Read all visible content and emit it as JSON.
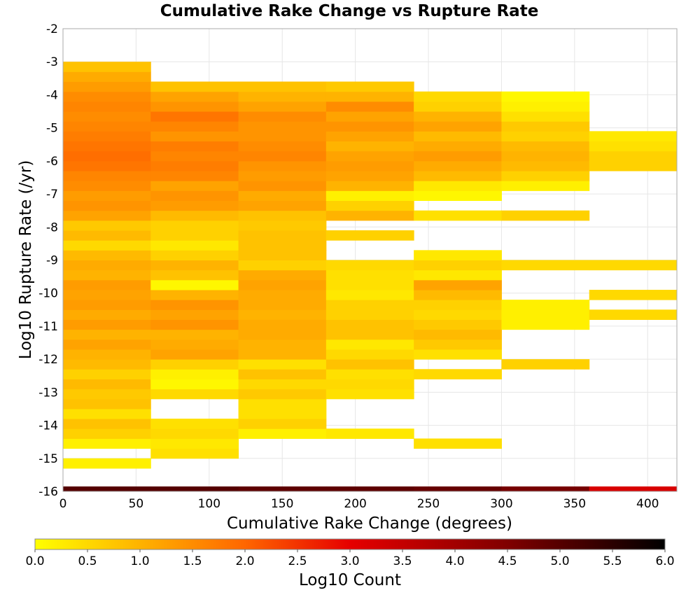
{
  "chart_data": {
    "type": "heatmap",
    "title": "Cumulative Rake Change vs Rupture Rate",
    "xlabel": "Cumulative Rake Change (degrees)",
    "ylabel": "Log10 Rupture Rate (/yr)",
    "xlim": [
      0,
      420
    ],
    "ylim": [
      -16,
      -2
    ],
    "x_ticks": [
      0,
      50,
      100,
      150,
      200,
      250,
      300,
      350,
      400
    ],
    "y_ticks": [
      -2,
      -3,
      -4,
      -5,
      -6,
      -7,
      -8,
      -9,
      -10,
      -11,
      -12,
      -13,
      -14,
      -15,
      -16
    ],
    "grid": true,
    "x_bin_width": 60,
    "y_bin_height": 0.3,
    "colorbar": {
      "label": "Log10 Count",
      "range": [
        0.0,
        6.0
      ],
      "ticks": [
        "0.0",
        "0.5",
        "1.0",
        "1.5",
        "2.0",
        "2.5",
        "3.0",
        "3.5",
        "4.0",
        "4.5",
        "5.0",
        "5.5",
        "6.0"
      ],
      "placement": "bottom",
      "stops": [
        {
          "value": 0.0,
          "color": "#ffff00"
        },
        {
          "value": 2.0,
          "color": "#ff6600"
        },
        {
          "value": 3.0,
          "color": "#e60000"
        },
        {
          "value": 4.5,
          "color": "#800000"
        },
        {
          "value": 6.0,
          "color": "#000000"
        }
      ]
    },
    "columns": [
      {
        "x0": 0,
        "x1": 60,
        "bins": [
          [
            -15.3,
            -15.0,
            0.2
          ],
          [
            -14.7,
            -14.4,
            0.2
          ],
          [
            -14.4,
            -14.1,
            0.6
          ],
          [
            -14.1,
            -13.8,
            0.8
          ],
          [
            -13.8,
            -13.5,
            0.4
          ],
          [
            -13.5,
            -13.2,
            0.8
          ],
          [
            -13.2,
            -12.9,
            0.7
          ],
          [
            -12.9,
            -12.6,
            0.9
          ],
          [
            -12.6,
            -12.3,
            0.6
          ],
          [
            -12.3,
            -12.0,
            0.9
          ],
          [
            -12.0,
            -11.7,
            1.0
          ],
          [
            -11.7,
            -11.4,
            1.2
          ],
          [
            -11.4,
            -11.1,
            1.0
          ],
          [
            -11.1,
            -10.8,
            1.3
          ],
          [
            -10.8,
            -10.5,
            1.1
          ],
          [
            -10.5,
            -10.2,
            1.3
          ],
          [
            -10.2,
            -9.9,
            1.2
          ],
          [
            -9.9,
            -9.6,
            1.3
          ],
          [
            -9.6,
            -9.3,
            1.0
          ],
          [
            -9.3,
            -9.0,
            1.1
          ],
          [
            -9.0,
            -8.7,
            0.9
          ],
          [
            -8.7,
            -8.4,
            0.5
          ],
          [
            -8.4,
            -8.1,
            0.9
          ],
          [
            -8.1,
            -7.8,
            0.7
          ],
          [
            -7.8,
            -7.5,
            1.2
          ],
          [
            -7.5,
            -7.2,
            1.4
          ],
          [
            -7.2,
            -6.9,
            1.3
          ],
          [
            -6.9,
            -6.6,
            1.5
          ],
          [
            -6.6,
            -6.3,
            1.6
          ],
          [
            -6.3,
            -6.0,
            1.8
          ],
          [
            -6.0,
            -5.7,
            1.9
          ],
          [
            -5.7,
            -5.4,
            1.8
          ],
          [
            -5.4,
            -5.1,
            1.7
          ],
          [
            -5.1,
            -4.8,
            1.6
          ],
          [
            -4.8,
            -4.5,
            1.5
          ],
          [
            -4.5,
            -4.2,
            1.6
          ],
          [
            -4.2,
            -3.9,
            1.5
          ],
          [
            -3.9,
            -3.6,
            1.3
          ],
          [
            -3.6,
            -3.3,
            1.1
          ],
          [
            -3.3,
            -3.0,
            0.8
          ]
        ]
      },
      {
        "x0": 60,
        "x1": 120,
        "bins": [
          [
            -15.0,
            -14.7,
            0.4
          ],
          [
            -14.7,
            -14.4,
            0.3
          ],
          [
            -14.4,
            -14.1,
            0.5
          ],
          [
            -14.1,
            -13.8,
            0.4
          ],
          [
            -13.2,
            -12.9,
            0.5
          ],
          [
            -12.9,
            -12.6,
            0.1
          ],
          [
            -12.6,
            -12.3,
            0.2
          ],
          [
            -12.3,
            -12.0,
            0.6
          ],
          [
            -12.0,
            -11.7,
            1.2
          ],
          [
            -11.7,
            -11.4,
            1.1
          ],
          [
            -11.4,
            -11.1,
            1.0
          ],
          [
            -11.1,
            -10.8,
            1.4
          ],
          [
            -10.8,
            -10.5,
            1.2
          ],
          [
            -10.5,
            -10.2,
            1.4
          ],
          [
            -10.2,
            -9.9,
            1.0
          ],
          [
            -9.9,
            -9.6,
            0.1
          ],
          [
            -9.6,
            -9.3,
            0.8
          ],
          [
            -9.3,
            -9.0,
            1.0
          ],
          [
            -9.0,
            -8.7,
            0.6
          ],
          [
            -8.7,
            -8.4,
            0.3
          ],
          [
            -8.4,
            -8.1,
            0.6
          ],
          [
            -8.1,
            -7.8,
            0.6
          ],
          [
            -7.8,
            -7.5,
            0.9
          ],
          [
            -7.5,
            -7.2,
            1.3
          ],
          [
            -7.2,
            -6.9,
            1.4
          ],
          [
            -6.9,
            -6.6,
            1.2
          ],
          [
            -6.6,
            -6.3,
            1.6
          ],
          [
            -6.3,
            -6.0,
            1.7
          ],
          [
            -6.0,
            -5.7,
            1.6
          ],
          [
            -5.7,
            -5.4,
            1.7
          ],
          [
            -5.4,
            -5.1,
            1.4
          ],
          [
            -5.1,
            -4.8,
            1.6
          ],
          [
            -4.8,
            -4.5,
            1.8
          ],
          [
            -4.5,
            -4.2,
            1.4
          ],
          [
            -4.2,
            -3.9,
            1.2
          ],
          [
            -3.9,
            -3.6,
            0.8
          ]
        ]
      },
      {
        "x0": 120,
        "x1": 180,
        "bins": [
          [
            -14.4,
            -14.1,
            0.2
          ],
          [
            -14.1,
            -13.8,
            0.6
          ],
          [
            -13.8,
            -13.5,
            0.4
          ],
          [
            -13.5,
            -13.2,
            0.4
          ],
          [
            -13.2,
            -12.9,
            0.7
          ],
          [
            -12.9,
            -12.6,
            0.5
          ],
          [
            -12.6,
            -12.3,
            0.8
          ],
          [
            -12.3,
            -12.0,
            0.4
          ],
          [
            -12.0,
            -11.7,
            1.0
          ],
          [
            -11.7,
            -11.4,
            1.0
          ],
          [
            -11.4,
            -11.1,
            1.1
          ],
          [
            -11.1,
            -10.8,
            1.1
          ],
          [
            -10.8,
            -10.5,
            1.0
          ],
          [
            -10.5,
            -10.2,
            1.1
          ],
          [
            -10.2,
            -9.9,
            1.1
          ],
          [
            -9.9,
            -9.6,
            1.2
          ],
          [
            -9.6,
            -9.3,
            1.1
          ],
          [
            -9.3,
            -9.0,
            0.6
          ],
          [
            -9.0,
            -8.7,
            0.8
          ],
          [
            -8.7,
            -8.4,
            0.8
          ],
          [
            -8.4,
            -8.1,
            0.8
          ],
          [
            -8.1,
            -7.8,
            0.7
          ],
          [
            -7.8,
            -7.5,
            0.8
          ],
          [
            -7.5,
            -7.2,
            1.2
          ],
          [
            -7.2,
            -6.9,
            1.1
          ],
          [
            -6.9,
            -6.6,
            1.4
          ],
          [
            -6.6,
            -6.3,
            1.3
          ],
          [
            -6.3,
            -6.0,
            1.4
          ],
          [
            -6.0,
            -5.7,
            1.6
          ],
          [
            -5.7,
            -5.4,
            1.5
          ],
          [
            -5.4,
            -5.1,
            1.4
          ],
          [
            -5.1,
            -4.8,
            1.4
          ],
          [
            -4.8,
            -4.5,
            1.5
          ],
          [
            -4.5,
            -4.2,
            1.2
          ],
          [
            -4.2,
            -3.9,
            1.0
          ],
          [
            -3.9,
            -3.6,
            0.8
          ]
        ]
      },
      {
        "x0": 180,
        "x1": 240,
        "bins": [
          [
            -14.4,
            -14.1,
            0.3
          ],
          [
            -13.2,
            -12.9,
            0.4
          ],
          [
            -12.9,
            -12.6,
            0.5
          ],
          [
            -12.6,
            -12.3,
            0.4
          ],
          [
            -12.3,
            -12.0,
            0.8
          ],
          [
            -12.0,
            -11.7,
            0.5
          ],
          [
            -11.7,
            -11.4,
            0.3
          ],
          [
            -11.4,
            -11.1,
            0.8
          ],
          [
            -11.1,
            -10.8,
            0.8
          ],
          [
            -10.8,
            -10.5,
            0.6
          ],
          [
            -10.5,
            -10.2,
            0.6
          ],
          [
            -10.2,
            -9.9,
            0.3
          ],
          [
            -9.9,
            -9.6,
            0.4
          ],
          [
            -9.6,
            -9.3,
            0.4
          ],
          [
            -9.3,
            -9.0,
            0.5
          ],
          [
            -8.4,
            -8.1,
            0.6
          ],
          [
            -7.8,
            -7.5,
            1.0
          ],
          [
            -7.5,
            -7.2,
            0.6
          ],
          [
            -7.2,
            -6.9,
            0.2
          ],
          [
            -6.9,
            -6.6,
            1.0
          ],
          [
            -6.6,
            -6.3,
            1.2
          ],
          [
            -6.3,
            -6.0,
            1.3
          ],
          [
            -6.0,
            -5.7,
            1.2
          ],
          [
            -5.7,
            -5.4,
            1.0
          ],
          [
            -5.4,
            -5.1,
            1.2
          ],
          [
            -5.1,
            -4.8,
            1.4
          ],
          [
            -4.8,
            -4.5,
            1.2
          ],
          [
            -4.5,
            -4.2,
            1.5
          ],
          [
            -4.2,
            -3.9,
            1.0
          ],
          [
            -3.9,
            -3.6,
            0.7
          ]
        ]
      },
      {
        "x0": 240,
        "x1": 300,
        "bins": [
          [
            -14.7,
            -14.4,
            0.4
          ],
          [
            -12.6,
            -12.3,
            0.5
          ],
          [
            -12.0,
            -11.7,
            0.4
          ],
          [
            -11.7,
            -11.4,
            0.7
          ],
          [
            -11.4,
            -11.1,
            0.9
          ],
          [
            -11.1,
            -10.8,
            0.7
          ],
          [
            -10.8,
            -10.5,
            0.5
          ],
          [
            -10.5,
            -10.2,
            0.6
          ],
          [
            -10.2,
            -9.9,
            0.9
          ],
          [
            -9.9,
            -9.6,
            1.2
          ],
          [
            -9.6,
            -9.3,
            0.3
          ],
          [
            -9.3,
            -9.0,
            0.6
          ],
          [
            -9.0,
            -8.7,
            0.3
          ],
          [
            -7.8,
            -7.5,
            0.4
          ],
          [
            -7.2,
            -6.9,
            0.1
          ],
          [
            -6.9,
            -6.6,
            0.3
          ],
          [
            -6.6,
            -6.3,
            0.9
          ],
          [
            -6.3,
            -6.0,
            1.1
          ],
          [
            -6.0,
            -5.7,
            1.3
          ],
          [
            -5.7,
            -5.4,
            1.1
          ],
          [
            -5.4,
            -5.1,
            0.9
          ],
          [
            -5.1,
            -4.8,
            1.2
          ],
          [
            -4.8,
            -4.5,
            1.0
          ],
          [
            -4.5,
            -4.2,
            0.6
          ],
          [
            -4.2,
            -3.9,
            0.5
          ]
        ]
      },
      {
        "x0": 300,
        "x1": 360,
        "bins": [
          [
            -12.3,
            -12.0,
            0.6
          ],
          [
            -11.1,
            -10.8,
            0.2
          ],
          [
            -10.8,
            -10.5,
            0.2
          ],
          [
            -10.5,
            -10.2,
            0.2
          ],
          [
            -9.3,
            -9.0,
            0.5
          ],
          [
            -7.8,
            -7.5,
            0.6
          ],
          [
            -6.9,
            -6.6,
            0.2
          ],
          [
            -6.6,
            -6.3,
            0.6
          ],
          [
            -6.3,
            -6.0,
            0.9
          ],
          [
            -6.0,
            -5.7,
            1.0
          ],
          [
            -5.7,
            -5.4,
            0.9
          ],
          [
            -5.4,
            -5.1,
            0.6
          ],
          [
            -5.1,
            -4.8,
            0.7
          ],
          [
            -4.8,
            -4.5,
            0.4
          ],
          [
            -4.5,
            -4.2,
            0.2
          ],
          [
            -4.2,
            -3.9,
            0.1
          ]
        ]
      },
      {
        "x0": 360,
        "x1": 420,
        "bins": [
          [
            -10.8,
            -10.5,
            0.5
          ],
          [
            -10.2,
            -9.9,
            0.5
          ],
          [
            -9.3,
            -9.0,
            0.5
          ],
          [
            -6.3,
            -6.0,
            0.6
          ],
          [
            -6.0,
            -5.7,
            0.6
          ],
          [
            -5.7,
            -5.4,
            0.4
          ],
          [
            -5.4,
            -5.1,
            0.3
          ]
        ]
      }
    ],
    "bottom_row": {
      "y0": -16.0,
      "y1": -15.85,
      "cells": [
        [
          0,
          60,
          5.0
        ],
        [
          60,
          120,
          5.0
        ],
        [
          120,
          180,
          4.9
        ],
        [
          180,
          240,
          4.9
        ],
        [
          240,
          300,
          4.8
        ],
        [
          300,
          360,
          4.6
        ],
        [
          360,
          420,
          3.2
        ]
      ]
    }
  }
}
